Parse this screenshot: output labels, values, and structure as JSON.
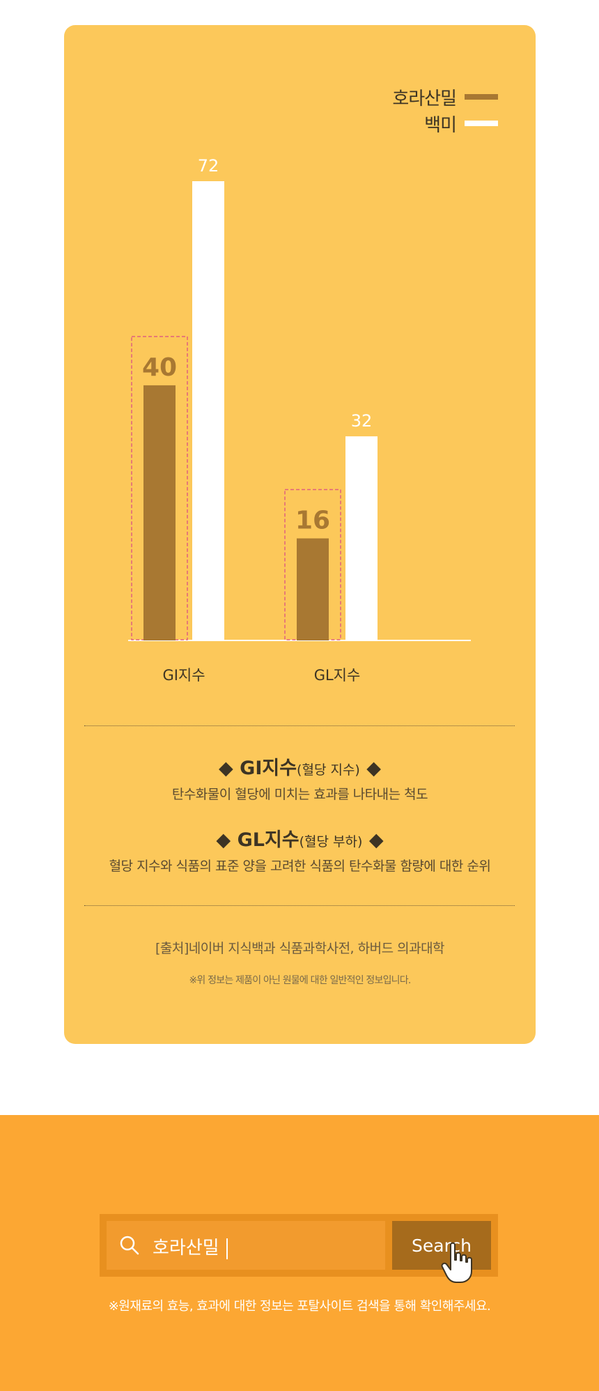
{
  "chart_data": {
    "type": "bar",
    "categories": [
      "GI지수",
      "GL지수"
    ],
    "series": [
      {
        "name": "호라산밀",
        "color": "#a87832",
        "values": [
          40,
          16
        ]
      },
      {
        "name": "백미",
        "color": "#ffffff",
        "values": [
          72,
          32
        ]
      }
    ],
    "highlight_series": "호라산밀",
    "ylim": [
      0,
      72
    ],
    "title": "",
    "xlabel": "",
    "ylabel": "",
    "legend_position": "top-right"
  },
  "definitions": [
    {
      "title": "GI지수",
      "paren": "(혈당 지수)",
      "desc": "탄수화물이 혈당에 미치는 효과를 나타내는 척도"
    },
    {
      "title": "GL지수",
      "paren": "(혈당 부하)",
      "desc": "혈당 지수와 식품의 표준 양을 고려한 식품의 탄수화물 함량에 대한 순위"
    }
  ],
  "diamond": "◆",
  "source": "[출처]네이버 지식백과 식품과학사전, 하버드 의과대학",
  "note": "※위 정보는 제품이 아닌 원물에 대한 일반적인 정보입니다.",
  "search": {
    "value": "호라산밀",
    "button_label": "Search",
    "hint": "※원재료의 효능, 효과에 대한 정보는 포탈사이트 검색을 통해 확인해주세요."
  },
  "colors": {
    "card": "#fcc85a",
    "bottom": "#fca733",
    "highlight_border": "#e0607e"
  }
}
